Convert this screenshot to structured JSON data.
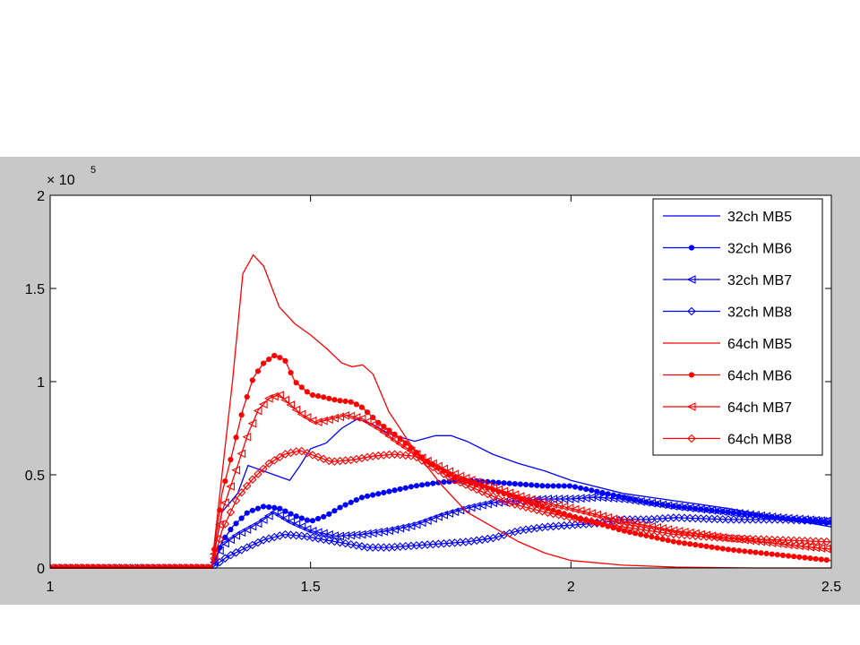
{
  "colors": {
    "background": "#ffffff",
    "figure_band": "#c8c8c8",
    "axes_face": "#ffffff",
    "blue": "#0000ff",
    "red": "#ff0000"
  },
  "chart_data": {
    "type": "line",
    "title": "",
    "xlabel": "",
    "ylabel": "",
    "y_exponent_label": "× 10",
    "y_exponent_power": "5",
    "xlim": [
      1,
      2.5
    ],
    "ylim": [
      0,
      200000
    ],
    "x_ticks": [
      1,
      1.5,
      2,
      2.5
    ],
    "x_tick_labels": [
      "1",
      "1.5",
      "2",
      "2.5"
    ],
    "y_ticks": [
      0,
      50000,
      100000,
      150000,
      200000
    ],
    "y_tick_labels": [
      "0",
      "0.5",
      "1",
      "1.5",
      "2"
    ],
    "grid": false,
    "legend_position": "top-right",
    "series": [
      {
        "name": "32ch MB5",
        "color": "#0000ff",
        "marker": "none",
        "points": [
          [
            1.31,
            0
          ],
          [
            1.33,
            30000
          ],
          [
            1.36,
            40000
          ],
          [
            1.38,
            55000
          ],
          [
            1.4,
            53000
          ],
          [
            1.43,
            50000
          ],
          [
            1.46,
            47000
          ],
          [
            1.48,
            55000
          ],
          [
            1.5,
            64000
          ],
          [
            1.53,
            67000
          ],
          [
            1.56,
            75000
          ],
          [
            1.59,
            80000
          ],
          [
            1.62,
            77000
          ],
          [
            1.65,
            72000
          ],
          [
            1.7,
            68000
          ],
          [
            1.74,
            71000
          ],
          [
            1.77,
            71000
          ],
          [
            1.8,
            68000
          ],
          [
            1.85,
            61000
          ],
          [
            1.9,
            56000
          ],
          [
            1.95,
            52000
          ],
          [
            2.0,
            47000
          ],
          [
            2.1,
            40000
          ],
          [
            2.2,
            36000
          ],
          [
            2.3,
            32000
          ],
          [
            2.4,
            27000
          ],
          [
            2.5,
            22000
          ]
        ]
      },
      {
        "name": "32ch MB6",
        "color": "#0000ff",
        "marker": "dot",
        "points": [
          [
            1.31,
            0
          ],
          [
            1.33,
            14000
          ],
          [
            1.35,
            22000
          ],
          [
            1.38,
            30000
          ],
          [
            1.41,
            33000
          ],
          [
            1.44,
            32000
          ],
          [
            1.47,
            28000
          ],
          [
            1.5,
            25000
          ],
          [
            1.53,
            28000
          ],
          [
            1.56,
            33000
          ],
          [
            1.6,
            38000
          ],
          [
            1.65,
            41000
          ],
          [
            1.7,
            44000
          ],
          [
            1.75,
            46000
          ],
          [
            1.8,
            47000
          ],
          [
            1.85,
            46000
          ],
          [
            1.9,
            45000
          ],
          [
            1.95,
            44000
          ],
          [
            2.0,
            44000
          ],
          [
            2.05,
            41000
          ],
          [
            2.1,
            38000
          ],
          [
            2.15,
            35000
          ],
          [
            2.2,
            33000
          ],
          [
            2.3,
            30000
          ],
          [
            2.4,
            27000
          ],
          [
            2.5,
            24000
          ]
        ]
      },
      {
        "name": "32ch MB7",
        "color": "#0000ff",
        "marker": "tri-left",
        "points": [
          [
            1.31,
            0
          ],
          [
            1.33,
            12000
          ],
          [
            1.36,
            18000
          ],
          [
            1.4,
            24000
          ],
          [
            1.43,
            30000
          ],
          [
            1.46,
            25000
          ],
          [
            1.5,
            20000
          ],
          [
            1.55,
            17000
          ],
          [
            1.6,
            18000
          ],
          [
            1.65,
            20000
          ],
          [
            1.7,
            23000
          ],
          [
            1.75,
            28000
          ],
          [
            1.8,
            32000
          ],
          [
            1.85,
            35000
          ],
          [
            1.9,
            36000
          ],
          [
            1.95,
            37000
          ],
          [
            2.0,
            37000
          ],
          [
            2.05,
            38000
          ],
          [
            2.1,
            37000
          ],
          [
            2.15,
            35000
          ],
          [
            2.2,
            33000
          ],
          [
            2.3,
            30000
          ],
          [
            2.4,
            27000
          ],
          [
            2.5,
            25000
          ]
        ]
      },
      {
        "name": "32ch MB8",
        "color": "#0000ff",
        "marker": "diamond",
        "points": [
          [
            1.31,
            0
          ],
          [
            1.34,
            6000
          ],
          [
            1.37,
            10000
          ],
          [
            1.41,
            15000
          ],
          [
            1.45,
            18000
          ],
          [
            1.49,
            17000
          ],
          [
            1.53,
            15000
          ],
          [
            1.57,
            13000
          ],
          [
            1.61,
            11000
          ],
          [
            1.65,
            11000
          ],
          [
            1.7,
            12000
          ],
          [
            1.75,
            13000
          ],
          [
            1.8,
            14000
          ],
          [
            1.85,
            16000
          ],
          [
            1.9,
            20000
          ],
          [
            1.95,
            22000
          ],
          [
            2.0,
            23000
          ],
          [
            2.05,
            24000
          ],
          [
            2.1,
            26000
          ],
          [
            2.15,
            26000
          ],
          [
            2.2,
            27000
          ],
          [
            2.3,
            26000
          ],
          [
            2.4,
            26000
          ],
          [
            2.5,
            25000
          ]
        ]
      },
      {
        "name": "64ch MB5",
        "color": "#ff0000",
        "marker": "none",
        "points": [
          [
            1.31,
            0
          ],
          [
            1.33,
            50000
          ],
          [
            1.35,
            100000
          ],
          [
            1.37,
            158000
          ],
          [
            1.39,
            168000
          ],
          [
            1.41,
            162000
          ],
          [
            1.44,
            140000
          ],
          [
            1.47,
            131000
          ],
          [
            1.5,
            125000
          ],
          [
            1.53,
            118000
          ],
          [
            1.56,
            110000
          ],
          [
            1.58,
            108000
          ],
          [
            1.6,
            109000
          ],
          [
            1.62,
            104000
          ],
          [
            1.65,
            84000
          ],
          [
            1.7,
            63000
          ],
          [
            1.75,
            45000
          ],
          [
            1.8,
            30000
          ],
          [
            1.85,
            22000
          ],
          [
            1.9,
            14000
          ],
          [
            1.95,
            8000
          ],
          [
            2.0,
            4000
          ],
          [
            2.1,
            1500
          ],
          [
            2.2,
            500
          ],
          [
            2.35,
            0
          ],
          [
            2.5,
            0
          ]
        ]
      },
      {
        "name": "64ch MB6",
        "color": "#ff0000",
        "marker": "dot",
        "points": [
          [
            1.31,
            0
          ],
          [
            1.33,
            40000
          ],
          [
            1.35,
            62000
          ],
          [
            1.37,
            85000
          ],
          [
            1.39,
            102000
          ],
          [
            1.41,
            110000
          ],
          [
            1.43,
            114000
          ],
          [
            1.45,
            112000
          ],
          [
            1.47,
            100000
          ],
          [
            1.5,
            93000
          ],
          [
            1.52,
            92000
          ],
          [
            1.55,
            90000
          ],
          [
            1.58,
            89000
          ],
          [
            1.6,
            86000
          ],
          [
            1.63,
            78000
          ],
          [
            1.67,
            70000
          ],
          [
            1.72,
            58000
          ],
          [
            1.78,
            48000
          ],
          [
            1.85,
            42000
          ],
          [
            1.92,
            35000
          ],
          [
            2.0,
            28000
          ],
          [
            2.1,
            20000
          ],
          [
            2.2,
            14000
          ],
          [
            2.3,
            10000
          ],
          [
            2.4,
            7000
          ],
          [
            2.5,
            4000
          ]
        ]
      },
      {
        "name": "64ch MB7",
        "color": "#ff0000",
        "marker": "tri-left",
        "points": [
          [
            1.31,
            0
          ],
          [
            1.33,
            30000
          ],
          [
            1.36,
            55000
          ],
          [
            1.38,
            72000
          ],
          [
            1.4,
            85000
          ],
          [
            1.42,
            91000
          ],
          [
            1.44,
            93000
          ],
          [
            1.46,
            88000
          ],
          [
            1.48,
            83000
          ],
          [
            1.51,
            78000
          ],
          [
            1.54,
            80000
          ],
          [
            1.57,
            82000
          ],
          [
            1.6,
            80000
          ],
          [
            1.63,
            75000
          ],
          [
            1.67,
            67000
          ],
          [
            1.72,
            58000
          ],
          [
            1.78,
            50000
          ],
          [
            1.85,
            43000
          ],
          [
            1.92,
            37000
          ],
          [
            2.0,
            32000
          ],
          [
            2.1,
            25000
          ],
          [
            2.2,
            20000
          ],
          [
            2.3,
            16000
          ],
          [
            2.4,
            13000
          ],
          [
            2.5,
            10000
          ]
        ]
      },
      {
        "name": "64ch MB8",
        "color": "#ff0000",
        "marker": "diamond",
        "points": [
          [
            1.31,
            0
          ],
          [
            1.33,
            20000
          ],
          [
            1.36,
            38000
          ],
          [
            1.39,
            48000
          ],
          [
            1.42,
            56000
          ],
          [
            1.45,
            61000
          ],
          [
            1.48,
            63000
          ],
          [
            1.51,
            60000
          ],
          [
            1.54,
            57000
          ],
          [
            1.58,
            58000
          ],
          [
            1.62,
            60000
          ],
          [
            1.66,
            61000
          ],
          [
            1.7,
            60000
          ],
          [
            1.73,
            55000
          ],
          [
            1.77,
            48000
          ],
          [
            1.82,
            42000
          ],
          [
            1.88,
            35000
          ],
          [
            1.95,
            30000
          ],
          [
            2.0,
            27000
          ],
          [
            2.1,
            22000
          ],
          [
            2.2,
            18000
          ],
          [
            2.3,
            16000
          ],
          [
            2.4,
            15000
          ],
          [
            2.5,
            14000
          ]
        ]
      }
    ]
  }
}
